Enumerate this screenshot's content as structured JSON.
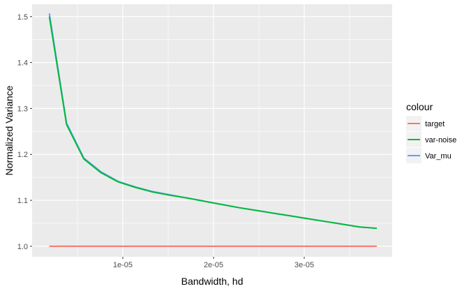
{
  "chart_data": {
    "type": "line",
    "xlabel": "Bandwidth, hd",
    "ylabel": "Normalized Variance",
    "xlim": [
      0,
      3.97e-05
    ],
    "ylim": [
      0.977,
      1.527
    ],
    "x_ticks": [
      {
        "value": 1e-05,
        "label": "1e-05"
      },
      {
        "value": 2e-05,
        "label": "2e-05"
      },
      {
        "value": 3e-05,
        "label": "3e-05"
      }
    ],
    "y_ticks": [
      {
        "value": 1.0,
        "label": "1.0"
      },
      {
        "value": 1.1,
        "label": "1.1"
      },
      {
        "value": 1.2,
        "label": "1.2"
      },
      {
        "value": 1.3,
        "label": "1.3"
      },
      {
        "value": 1.4,
        "label": "1.4"
      },
      {
        "value": 1.5,
        "label": "1.5"
      }
    ],
    "grid": true,
    "background": "#EBEBEB",
    "legend": {
      "title": "colour",
      "position": "right"
    },
    "x": [
      1.9e-06,
      3.8e-06,
      5.7e-06,
      7.6e-06,
      9.5e-06,
      1.14e-05,
      1.33e-05,
      1.52e-05,
      1.71e-05,
      1.9e-05,
      2.09e-05,
      2.28e-05,
      2.47e-05,
      2.66e-05,
      2.85e-05,
      3.04e-05,
      3.23e-05,
      3.42e-05,
      3.61e-05,
      3.8e-05
    ],
    "series": [
      {
        "name": "target",
        "color": "#F8766D",
        "values": [
          1.0,
          1.0,
          1.0,
          1.0,
          1.0,
          1.0,
          1.0,
          1.0,
          1.0,
          1.0,
          1.0,
          1.0,
          1.0,
          1.0,
          1.0,
          1.0,
          1.0,
          1.0,
          1.0,
          1.0
        ]
      },
      {
        "name": "var-noise",
        "color": "#00BA38",
        "values": [
          1.5,
          1.265,
          1.19,
          1.16,
          1.14,
          1.128,
          1.118,
          1.111,
          1.105,
          1.098,
          1.091,
          1.084,
          1.078,
          1.072,
          1.066,
          1.06,
          1.054,
          1.048,
          1.042,
          1.039
        ]
      },
      {
        "name": "Var_mu",
        "color": "#619CFF",
        "values": [
          1.507,
          1.268,
          1.192,
          1.162,
          1.141,
          1.129,
          1.119,
          1.112,
          1.105,
          1.098,
          1.091,
          1.084,
          1.078,
          1.072,
          1.066,
          1.06,
          1.054,
          1.048,
          1.042,
          1.039
        ]
      }
    ]
  }
}
